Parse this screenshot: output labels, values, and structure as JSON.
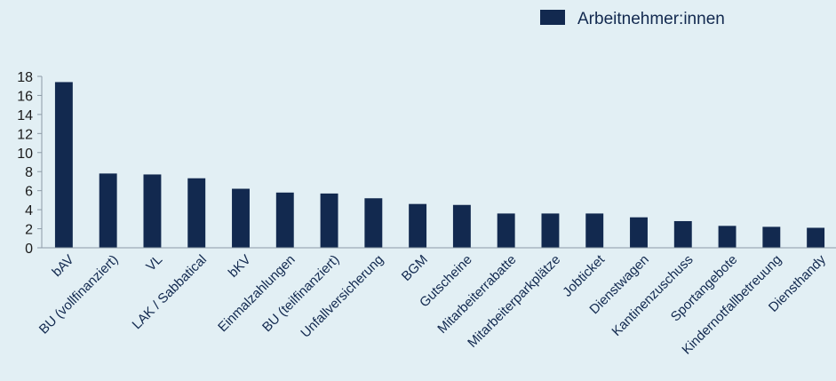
{
  "chart_data": {
    "type": "bar",
    "categories": [
      "bAV",
      "BU (vollfinanziert)",
      "VL",
      "LAK / Sabbatical",
      "bKV",
      "Einmalzahlungen",
      "BU (teilfinanziert)",
      "Unfallversicherung",
      "BGM",
      "Gutscheine",
      "Mitarbeiterrabatte",
      "Mitarbeiterparkplätze",
      "Jobticket",
      "Dienstwagen",
      "Kantinenzuschuss",
      "Sportangebote",
      "Kindernotfallbetreuung",
      "Diensthandy"
    ],
    "series": [
      {
        "name": "Arbeitnehmer:innen",
        "values": [
          17.4,
          7.8,
          7.7,
          7.3,
          6.2,
          5.8,
          5.7,
          5.2,
          4.6,
          4.5,
          3.6,
          3.6,
          3.6,
          3.2,
          2.8,
          2.3,
          2.2,
          2.1
        ],
        "color": "#12294f"
      }
    ],
    "yticks": [
      0,
      2,
      4,
      6,
      8,
      10,
      12,
      14,
      16,
      18
    ],
    "ylim": [
      0,
      18
    ],
    "grid": false,
    "legend_position": "top-right",
    "xlabel": "",
    "ylabel": "",
    "title": ""
  },
  "colors": {
    "background": "#e2eff4",
    "bar": "#12294f",
    "axis": "#8c9aa6"
  }
}
